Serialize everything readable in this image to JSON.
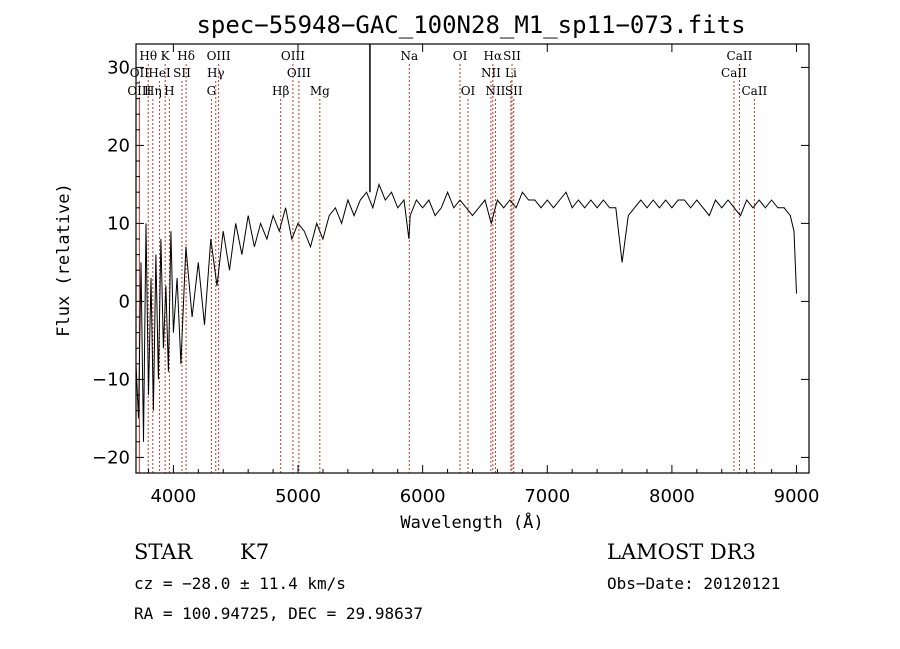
{
  "chart_data": {
    "type": "line",
    "title": "spec−55948−GAC_100N28_M1_sp11−073.fits",
    "xlabel": "Wavelength (Å)",
    "ylabel": "Flux (relative)",
    "xlim": [
      3700,
      9100
    ],
    "ylim": [
      -22,
      33
    ],
    "xticks": [
      4000,
      5000,
      6000,
      7000,
      8000,
      9000
    ],
    "xtick_labels": [
      "4000",
      "5000",
      "6000",
      "7000",
      "8000",
      "9000"
    ],
    "yticks": [
      -20,
      -10,
      0,
      10,
      20,
      30
    ],
    "ytick_labels": [
      "−20",
      "−10",
      "0",
      "10",
      "20",
      "30"
    ],
    "series": [
      {
        "name": "flux",
        "x": [
          3700,
          3720,
          3740,
          3760,
          3780,
          3800,
          3820,
          3840,
          3860,
          3880,
          3900,
          3920,
          3940,
          3960,
          3980,
          4000,
          4030,
          4060,
          4100,
          4150,
          4200,
          4250,
          4300,
          4350,
          4400,
          4450,
          4500,
          4550,
          4600,
          4650,
          4700,
          4750,
          4800,
          4850,
          4900,
          4950,
          5000,
          5050,
          5100,
          5150,
          5200,
          5250,
          5300,
          5350,
          5400,
          5450,
          5500,
          5550,
          5600,
          5650,
          5700,
          5750,
          5800,
          5850,
          5890,
          5900,
          5950,
          6000,
          6050,
          6100,
          6150,
          6200,
          6250,
          6300,
          6350,
          6400,
          6450,
          6500,
          6550,
          6600,
          6650,
          6700,
          6750,
          6800,
          6850,
          6900,
          6950,
          7000,
          7050,
          7100,
          7150,
          7200,
          7250,
          7300,
          7350,
          7400,
          7450,
          7500,
          7550,
          7600,
          7650,
          7700,
          7750,
          7800,
          7850,
          7900,
          7950,
          8000,
          8050,
          8100,
          8150,
          8200,
          8250,
          8300,
          8350,
          8400,
          8450,
          8500,
          8550,
          8600,
          8650,
          8700,
          8750,
          8800,
          8850,
          8900,
          8950,
          8980,
          9000
        ],
        "values": [
          -8,
          -15,
          5,
          -18,
          10,
          -12,
          3,
          -14,
          6,
          -10,
          8,
          -6,
          2,
          -9,
          9,
          -4,
          3,
          -8,
          7,
          -2,
          5,
          -3,
          8,
          2,
          9,
          4,
          10,
          6,
          11,
          7,
          10,
          8,
          11,
          9,
          12,
          8,
          10,
          9,
          7,
          10,
          8,
          11,
          12,
          10,
          13,
          11,
          13,
          14,
          12,
          15,
          13,
          14,
          12,
          13,
          8,
          11,
          13,
          12,
          13,
          11,
          12,
          14,
          12,
          13,
          12,
          11,
          12,
          13,
          10,
          13,
          12,
          13,
          12,
          14,
          13,
          13,
          12,
          13,
          12,
          13,
          14,
          12,
          13,
          12,
          13,
          12,
          13,
          12,
          12,
          5,
          11,
          12,
          13,
          12,
          13,
          12,
          13,
          12,
          13,
          13,
          12,
          13,
          12,
          11,
          13,
          12,
          13,
          12,
          11,
          13,
          12,
          13,
          12,
          13,
          12,
          12,
          11,
          9,
          1
        ]
      }
    ],
    "spectral_lines": {
      "row1": [
        {
          "label": "Hθ",
          "wave": 3798
        },
        {
          "label": "K",
          "wave": 3934
        },
        {
          "label": "Hδ",
          "wave": 4102
        },
        {
          "label": "OIII",
          "wave": 4363
        },
        {
          "label": "OIII",
          "wave": 4959
        },
        {
          "label": "Na",
          "wave": 5893
        },
        {
          "label": "OI",
          "wave": 6300
        },
        {
          "label": "Hα",
          "wave": 6563
        },
        {
          "label": "SII",
          "wave": 6717
        },
        {
          "label": "CaII",
          "wave": 8542
        }
      ],
      "row2": [
        {
          "label": "OII",
          "wave": 3727
        },
        {
          "label": "HeI",
          "wave": 3889
        },
        {
          "label": "SII",
          "wave": 4069
        },
        {
          "label": "Hγ",
          "wave": 4340
        },
        {
          "label": "OIII",
          "wave": 5007
        },
        {
          "label": "NII",
          "wave": 6548
        },
        {
          "label": "Li",
          "wave": 6708
        },
        {
          "label": "CaII",
          "wave": 8498
        }
      ],
      "row3": [
        {
          "label": "OIII",
          "wave": 3727
        },
        {
          "label": "Hη",
          "wave": 3835
        },
        {
          "label": "H",
          "wave": 3968
        },
        {
          "label": "G",
          "wave": 4305
        },
        {
          "label": "Hβ",
          "wave": 4861
        },
        {
          "label": "Mg",
          "wave": 5175
        },
        {
          "label": "OI",
          "wave": 6364
        },
        {
          "label": "NII",
          "wave": 6584
        },
        {
          "label": "SII",
          "wave": 6731
        },
        {
          "label": "CaII",
          "wave": 8662
        }
      ]
    },
    "line_color": "#000000",
    "marker_color": "#c0392b"
  },
  "info": {
    "object_class": "STAR",
    "subclass": "K7",
    "survey": "LAMOST DR3",
    "cz": "cz = −28.0 ± 11.4 km/s",
    "obs_date": "Obs−Date: 20120121",
    "coords": "RA = 100.94725, DEC =  29.98637"
  }
}
